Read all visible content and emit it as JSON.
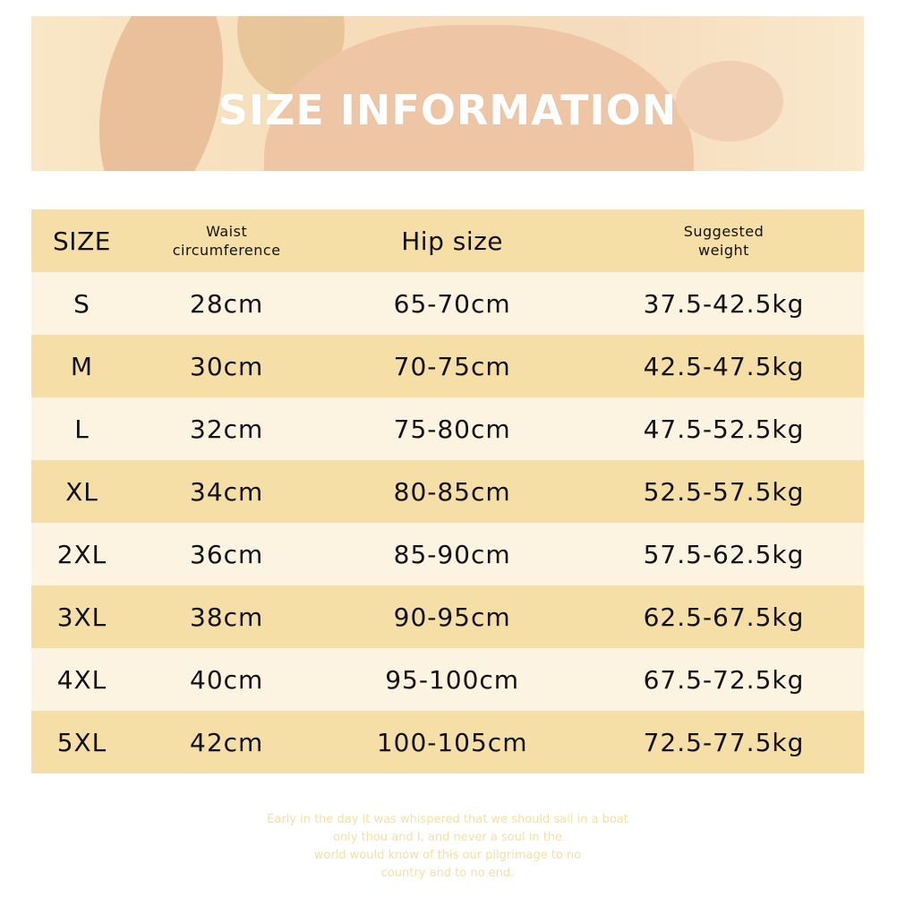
{
  "banner": {
    "title": "SIZE INFORMATION"
  },
  "colors": {
    "row_dark": "#f6dfa6",
    "row_light": "#fdf3e1",
    "footer_text": "#f5dfa6"
  },
  "table": {
    "headers": [
      "SIZE",
      "Waist\ncircumference",
      "Hip size",
      "Suggested\nweight"
    ],
    "header_lines": {
      "waist": [
        "Waist",
        "circumference"
      ],
      "weight": [
        "Suggested",
        "weight"
      ]
    },
    "rows": [
      [
        "S",
        "28cm",
        "65-70cm",
        "37.5-42.5kg"
      ],
      [
        "M",
        "30cm",
        "70-75cm",
        "42.5-47.5kg"
      ],
      [
        "L",
        "32cm",
        "75-80cm",
        "47.5-52.5kg"
      ],
      [
        "XL",
        "34cm",
        "80-85cm",
        "52.5-57.5kg"
      ],
      [
        "2XL",
        "36cm",
        "85-90cm",
        "57.5-62.5kg"
      ],
      [
        "3XL",
        "38cm",
        "90-95cm",
        "62.5-67.5kg"
      ],
      [
        "4XL",
        "40cm",
        "95-100cm",
        "67.5-72.5kg"
      ],
      [
        "5XL",
        "42cm",
        "100-105cm",
        "72.5-77.5kg"
      ]
    ]
  },
  "footer": {
    "lines": [
      "Early in the day it was whispered that we should sail in a boat",
      "only thou and I, and never a soul in the",
      "world would know of this our pilgrimage to no",
      "country and to no end."
    ]
  }
}
